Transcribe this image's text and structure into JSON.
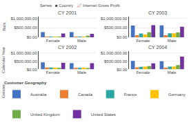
{
  "chart_data": [
    {
      "type": "bar",
      "title": "CY 2001",
      "categories": [
        "Female",
        "Male"
      ],
      "series": [
        {
          "name": "Australia",
          "color": "#4472C4",
          "values": [
            280000,
            280000
          ]
        },
        {
          "name": "Canada",
          "color": "#ED7D31",
          "values": [
            15000,
            10000
          ]
        },
        {
          "name": "France",
          "color": "#2CA5A5",
          "values": [
            10000,
            10000
          ]
        },
        {
          "name": "Germany",
          "color": "#FFC000",
          "values": [
            12000,
            12000
          ]
        },
        {
          "name": "United Kingdom",
          "color": "#70AD47",
          "values": [
            10000,
            80000
          ]
        },
        {
          "name": "United States",
          "color": "#7030A0",
          "values": [
            200000,
            185000
          ]
        }
      ],
      "ylim": [
        0,
        1100000
      ],
      "yticks": [
        {
          "value": 0,
          "label": "$0.00"
        },
        {
          "value": 500000,
          "label": "$500,000.00"
        },
        {
          "value": 1000000,
          "label": "$1,000,000.00"
        }
      ],
      "grid": true,
      "legend": "bottom",
      "annotations": [
        "Series   ■ Country   📈 Internet Gross Profit",
        "Bars",
        "Calendar Year",
        "Gender",
        "Customer Geography"
      ]
    },
    {
      "type": "bar",
      "title": "CY 2003",
      "categories": [
        "Female",
        "Male"
      ],
      "series": [
        {
          "name": "Australia",
          "color": "#4472C4",
          "values": [
            620000,
            630000
          ]
        },
        {
          "name": "Canada",
          "color": "#ED7D31",
          "values": [
            110000,
            110000
          ]
        },
        {
          "name": "France",
          "color": "#2CA5A5",
          "values": [
            200000,
            210000
          ]
        },
        {
          "name": "Germany",
          "color": "#FFC000",
          "values": [
            150000,
            210000
          ]
        },
        {
          "name": "United Kingdom",
          "color": "#70AD47",
          "values": [
            270000,
            260000
          ]
        },
        {
          "name": "United States",
          "color": "#7030A0",
          "values": [
            640000,
            560000
          ]
        }
      ],
      "ylim": [
        0,
        1100000
      ],
      "yticks": [
        {
          "value": 0,
          "label": "$0.00"
        },
        {
          "value": 500000,
          "label": "$500,000.00"
        },
        {
          "value": 1000000,
          "label": "$1,000,000.00"
        }
      ],
      "grid": true
    },
    {
      "type": "bar",
      "title": "CY 2002",
      "categories": [
        "Female",
        "Male"
      ],
      "series": [
        {
          "name": "Australia",
          "color": "#4472C4",
          "values": [
            430000,
            370000
          ]
        },
        {
          "name": "Canada",
          "color": "#ED7D31",
          "values": [
            110000,
            95000
          ]
        },
        {
          "name": "France",
          "color": "#2CA5A5",
          "values": [
            110000,
            95000
          ]
        },
        {
          "name": "Germany",
          "color": "#FFC000",
          "values": [
            100000,
            105000
          ]
        },
        {
          "name": "United Kingdom",
          "color": "#70AD47",
          "values": [
            90000,
            85000
          ]
        },
        {
          "name": "United States",
          "color": "#7030A0",
          "values": [
            390000,
            375000
          ]
        }
      ],
      "ylim": [
        0,
        1100000
      ],
      "yticks": [
        {
          "value": 0,
          "label": "$0.00"
        },
        {
          "value": 500000,
          "label": "$500,000.00"
        },
        {
          "value": 1000000,
          "label": "$1,000,000.00"
        }
      ],
      "grid": true
    },
    {
      "type": "bar",
      "title": "CY 2004",
      "categories": [
        "Female",
        "Male"
      ],
      "series": [
        {
          "name": "Australia",
          "color": "#4472C4",
          "values": [
            510000,
            490000
          ]
        },
        {
          "name": "Canada",
          "color": "#ED7D31",
          "values": [
            120000,
            100000
          ]
        },
        {
          "name": "France",
          "color": "#2CA5A5",
          "values": [
            150000,
            160000
          ]
        },
        {
          "name": "Germany",
          "color": "#FFC000",
          "values": [
            160000,
            165000
          ]
        },
        {
          "name": "United Kingdom",
          "color": "#70AD47",
          "values": [
            200000,
            255000
          ]
        },
        {
          "name": "United States",
          "color": "#7030A0",
          "values": [
            360000,
            770000
          ]
        }
      ],
      "ylim": [
        0,
        1100000
      ],
      "yticks": [
        {
          "value": 0,
          "label": "$0.00"
        },
        {
          "value": 500000,
          "label": "$500,000.00"
        },
        {
          "value": 1000000,
          "label": "$1,000,000.00"
        }
      ],
      "grid": true
    }
  ]
}
